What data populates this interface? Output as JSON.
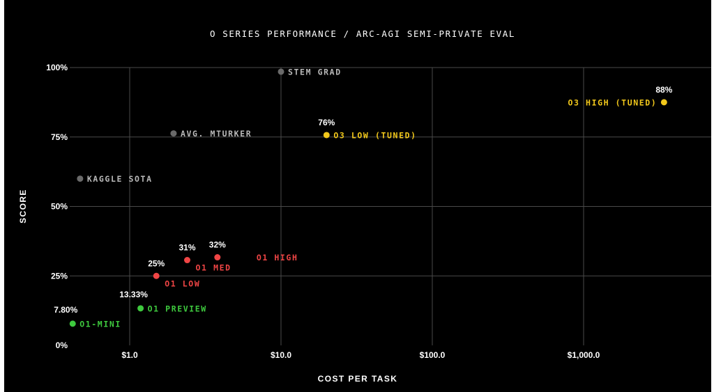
{
  "chart_data": {
    "type": "scatter",
    "title": "O SERIES PERFORMANCE / ARC-AGI SEMI-PRIVATE EVAL",
    "xlabel": "COST PER TASK",
    "ylabel": "SCORE",
    "x_scale": "log",
    "xlim": [
      0.42,
      5500
    ],
    "ylim": [
      0,
      100
    ],
    "grid": true,
    "x_ticks": [
      {
        "value": 1,
        "label": "$1.0"
      },
      {
        "value": 10,
        "label": "$10.0"
      },
      {
        "value": 100,
        "label": "$100.0"
      },
      {
        "value": 1000,
        "label": "$1,000.0"
      }
    ],
    "y_ticks": [
      {
        "value": 0,
        "label": "0%"
      },
      {
        "value": 25,
        "label": "25%"
      },
      {
        "value": 50,
        "label": "50%"
      },
      {
        "value": 75,
        "label": "75%"
      },
      {
        "value": 100,
        "label": "100%"
      }
    ],
    "points": [
      {
        "name": "O1-MINI",
        "x": 0.42,
        "y": 7.8,
        "value_label": "7.80%",
        "color": "#3ec93e",
        "label_color": "#3ec93e",
        "label_side": "right",
        "value_side": "above-left"
      },
      {
        "name": "O1 PREVIEW",
        "x": 1.18,
        "y": 13.33,
        "value_label": "13.33%",
        "color": "#3ec93e",
        "label_color": "#3ec93e",
        "label_side": "right",
        "value_side": "above-left"
      },
      {
        "name": "O1 LOW",
        "x": 1.5,
        "y": 25,
        "value_label": "25%",
        "color": "#f04545",
        "label_color": "#f04545",
        "label_side": "below-right",
        "value_side": "above"
      },
      {
        "name": "O1 MED",
        "x": 2.4,
        "y": 30.7,
        "value_label": "31%",
        "color": "#f04545",
        "label_color": "#f04545",
        "label_side": "below-right",
        "value_side": "above"
      },
      {
        "name": "O1 HIGH",
        "x": 3.8,
        "y": 31.7,
        "value_label": "32%",
        "color": "#f04545",
        "label_color": "#f04545",
        "label_side": "far-right",
        "value_side": "above"
      },
      {
        "name": "O3 LOW (TUNED)",
        "x": 20,
        "y": 75.7,
        "value_label": "76%",
        "color": "#f2c81b",
        "label_color": "#f2c81b",
        "label_side": "right",
        "value_side": "above"
      },
      {
        "name": "O3 HIGH (TUNED)",
        "x": 3400,
        "y": 87.5,
        "value_label": "88%",
        "color": "#f2c81b",
        "label_color": "#f2c81b",
        "label_side": "left",
        "value_side": "above"
      },
      {
        "name": "KAGGLE SOTA",
        "x": 0.47,
        "y": 60,
        "value_label": "",
        "color": "#6a6a6a",
        "label_color": "#b9b9b9",
        "label_side": "right",
        "value_side": "none"
      },
      {
        "name": "AVG. MTURKER",
        "x": 1.95,
        "y": 76.3,
        "value_label": "",
        "color": "#6a6a6a",
        "label_color": "#b9b9b9",
        "label_side": "right",
        "value_side": "none"
      },
      {
        "name": "STEM GRAD",
        "x": 10,
        "y": 98.5,
        "value_label": "",
        "color": "#6a6a6a",
        "label_color": "#b9b9b9",
        "label_side": "right",
        "value_side": "none"
      }
    ],
    "colors": {
      "background": "#000000",
      "grid": "#4a4a4a",
      "text": "#ffffff"
    }
  }
}
